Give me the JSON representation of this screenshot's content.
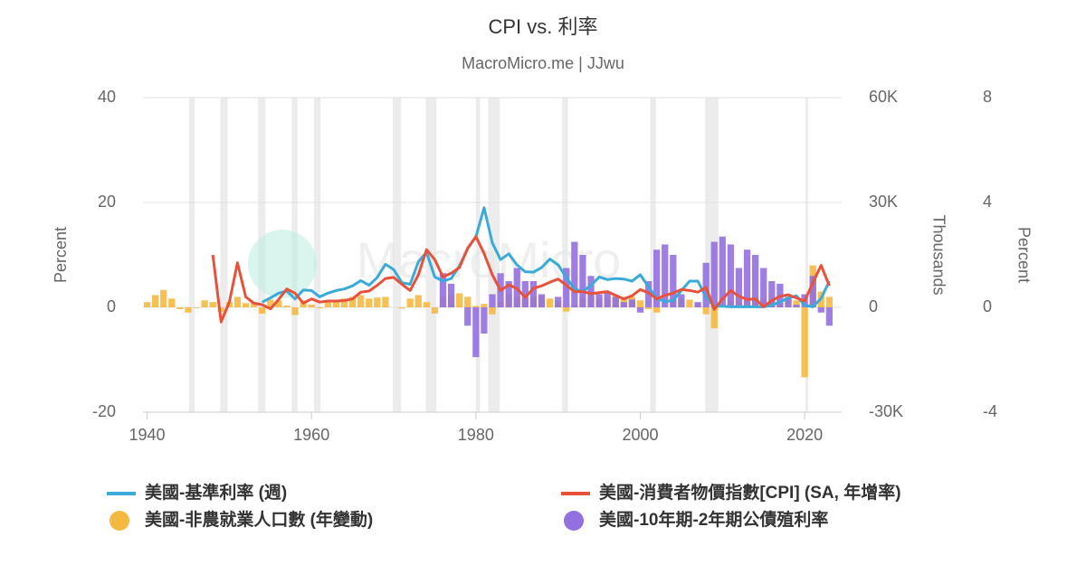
{
  "chart_data": {
    "type": "combo",
    "title": "CPI vs. 利率",
    "subtitle": "MacroMicro.me | JJwu",
    "watermark": "MacroMicro",
    "y_label": "Percent",
    "y2_label": "Thousands",
    "y3_label": "Percent",
    "xlim": [
      1939.5,
      2024.5
    ],
    "xticks": [
      1940,
      1960,
      1980,
      2000,
      2020
    ],
    "ylim": [
      -20,
      40
    ],
    "yticks": [
      -20,
      0,
      20,
      40
    ],
    "y2lim": [
      -30000,
      60000
    ],
    "y2ticks": [
      {
        "value": -30000,
        "label": "-30K"
      },
      0,
      {
        "value": 30000,
        "label": "30K"
      },
      {
        "value": 60000,
        "label": "60K"
      }
    ],
    "y3lim": [
      -4,
      8
    ],
    "y3ticks": [
      -4,
      0,
      4,
      8
    ],
    "grid": true,
    "recessions": [
      [
        1945.1,
        1945.8
      ],
      [
        1948.9,
        1949.8
      ],
      [
        1953.5,
        1954.4
      ],
      [
        1957.6,
        1958.3
      ],
      [
        1960.3,
        1961.1
      ],
      [
        1969.9,
        1970.9
      ],
      [
        1973.9,
        1975.2
      ],
      [
        1980.0,
        1980.5
      ],
      [
        1981.5,
        1982.9
      ],
      [
        1990.5,
        1991.2
      ],
      [
        2001.2,
        2001.9
      ],
      [
        2007.9,
        2009.5
      ],
      [
        2020.1,
        2020.4
      ]
    ],
    "x": [
      1940,
      1941,
      1942,
      1943,
      1944,
      1945,
      1946,
      1947,
      1948,
      1949,
      1950,
      1951,
      1952,
      1953,
      1954,
      1955,
      1956,
      1957,
      1958,
      1959,
      1960,
      1961,
      1962,
      1963,
      1964,
      1965,
      1966,
      1967,
      1968,
      1969,
      1970,
      1971,
      1972,
      1973,
      1974,
      1975,
      1976,
      1977,
      1978,
      1979,
      1980,
      1981,
      1982,
      1983,
      1984,
      1985,
      1986,
      1987,
      1988,
      1989,
      1990,
      1991,
      1992,
      1993,
      1994,
      1995,
      1996,
      1997,
      1998,
      1999,
      2000,
      2001,
      2002,
      2003,
      2004,
      2005,
      2006,
      2007,
      2008,
      2009,
      2010,
      2011,
      2012,
      2013,
      2014,
      2015,
      2016,
      2017,
      2018,
      2019,
      2020,
      2021,
      2022,
      2023
    ],
    "series": [
      {
        "name": "美國-非農就業人口數 (年變動)",
        "type": "bar",
        "axis": "y2",
        "color": "#f5b941",
        "values": [
          1500,
          3500,
          5000,
          2500,
          -500,
          -1500,
          -200,
          2000,
          1500,
          -1300,
          1500,
          3000,
          1200,
          1500,
          -1800,
          2200,
          2000,
          500,
          -2200,
          2000,
          800,
          -300,
          2000,
          1800,
          2500,
          3000,
          3500,
          2500,
          2800,
          3000,
          0,
          -300,
          2500,
          3500,
          1500,
          -1800,
          3000,
          3500,
          4000,
          3000,
          400,
          1000,
          -2000,
          1500,
          3800,
          3000,
          2500,
          3000,
          3200,
          2500,
          1800,
          -1200,
          500,
          2800,
          3500,
          2500,
          2800,
          3300,
          3000,
          3000,
          2000,
          -500,
          -1500,
          0,
          2000,
          2500,
          2200,
          1200,
          -2000,
          -6000,
          0,
          2000,
          2200,
          2300,
          2800,
          2700,
          2300,
          2000,
          2300,
          2000,
          -20000,
          12000,
          4500,
          3000
        ]
      },
      {
        "name": "美國-10年期-2年期公債殖利率",
        "type": "bar",
        "axis": "y3",
        "color": "#9370e0",
        "values": [
          null,
          null,
          null,
          null,
          null,
          null,
          null,
          null,
          null,
          null,
          null,
          null,
          null,
          null,
          null,
          null,
          null,
          null,
          null,
          null,
          null,
          null,
          null,
          null,
          null,
          null,
          null,
          null,
          null,
          null,
          null,
          null,
          null,
          null,
          null,
          null,
          1.3,
          0.9,
          0.0,
          -0.7,
          -1.9,
          -1.0,
          0.5,
          1.3,
          1.0,
          1.5,
          1.0,
          1.0,
          0.5,
          0.0,
          0.4,
          1.5,
          2.5,
          2.0,
          1.2,
          0.5,
          0.6,
          0.4,
          0.2,
          0.3,
          -0.2,
          1.0,
          2.2,
          2.4,
          2.0,
          0.5,
          0.0,
          0.2,
          1.7,
          2.5,
          2.7,
          2.4,
          1.5,
          2.2,
          2.0,
          1.5,
          1.0,
          0.9,
          0.4,
          0.1,
          0.5,
          1.2,
          -0.2,
          -0.7
        ]
      },
      {
        "name": "美國-基準利率 (週)",
        "type": "line",
        "axis": "y",
        "color": "#3aabd8",
        "values": [
          null,
          null,
          null,
          null,
          null,
          null,
          null,
          null,
          null,
          null,
          null,
          null,
          null,
          null,
          1.0,
          1.8,
          2.7,
          3.1,
          1.6,
          3.3,
          3.2,
          2.0,
          2.7,
          3.2,
          3.5,
          4.1,
          5.1,
          4.2,
          5.7,
          8.2,
          7.2,
          4.7,
          4.4,
          8.7,
          10.5,
          5.8,
          5.0,
          5.5,
          7.9,
          11.2,
          13.4,
          19.0,
          12.3,
          9.1,
          10.2,
          8.1,
          6.8,
          6.7,
          7.6,
          9.2,
          8.1,
          5.7,
          3.5,
          3.0,
          4.2,
          5.8,
          5.3,
          5.5,
          5.4,
          5.0,
          6.2,
          3.9,
          1.7,
          1.1,
          1.3,
          3.2,
          5.0,
          5.0,
          1.9,
          0.2,
          0.2,
          0.1,
          0.1,
          0.1,
          0.1,
          0.1,
          0.4,
          1.0,
          1.8,
          2.2,
          0.4,
          0.1,
          1.7,
          5.0
        ]
      },
      {
        "name": "美國-消費者物價指數[CPI] (SA, 年增率)",
        "type": "line",
        "axis": "y",
        "color": "#e8523b",
        "values": [
          null,
          null,
          null,
          null,
          null,
          null,
          null,
          null,
          10.0,
          -2.8,
          1.0,
          8.5,
          2.0,
          0.8,
          0.5,
          -0.3,
          1.5,
          3.5,
          2.7,
          0.8,
          1.6,
          1.0,
          1.2,
          1.2,
          1.3,
          1.6,
          2.9,
          3.1,
          4.2,
          5.5,
          5.7,
          4.4,
          3.2,
          6.2,
          11.0,
          9.1,
          5.8,
          6.5,
          7.6,
          11.3,
          13.5,
          10.3,
          6.2,
          3.2,
          4.3,
          3.6,
          1.9,
          3.6,
          4.1,
          4.8,
          5.4,
          4.2,
          3.0,
          3.0,
          2.6,
          2.8,
          3.0,
          2.3,
          1.6,
          2.2,
          3.4,
          2.8,
          1.6,
          2.3,
          2.7,
          3.4,
          3.2,
          2.9,
          3.8,
          -0.4,
          1.6,
          3.2,
          2.1,
          1.5,
          1.6,
          0.1,
          1.3,
          2.1,
          2.4,
          1.8,
          1.2,
          4.7,
          8.0,
          4.1
        ]
      }
    ],
    "legend_order": [
      2,
      3,
      0,
      1
    ]
  }
}
